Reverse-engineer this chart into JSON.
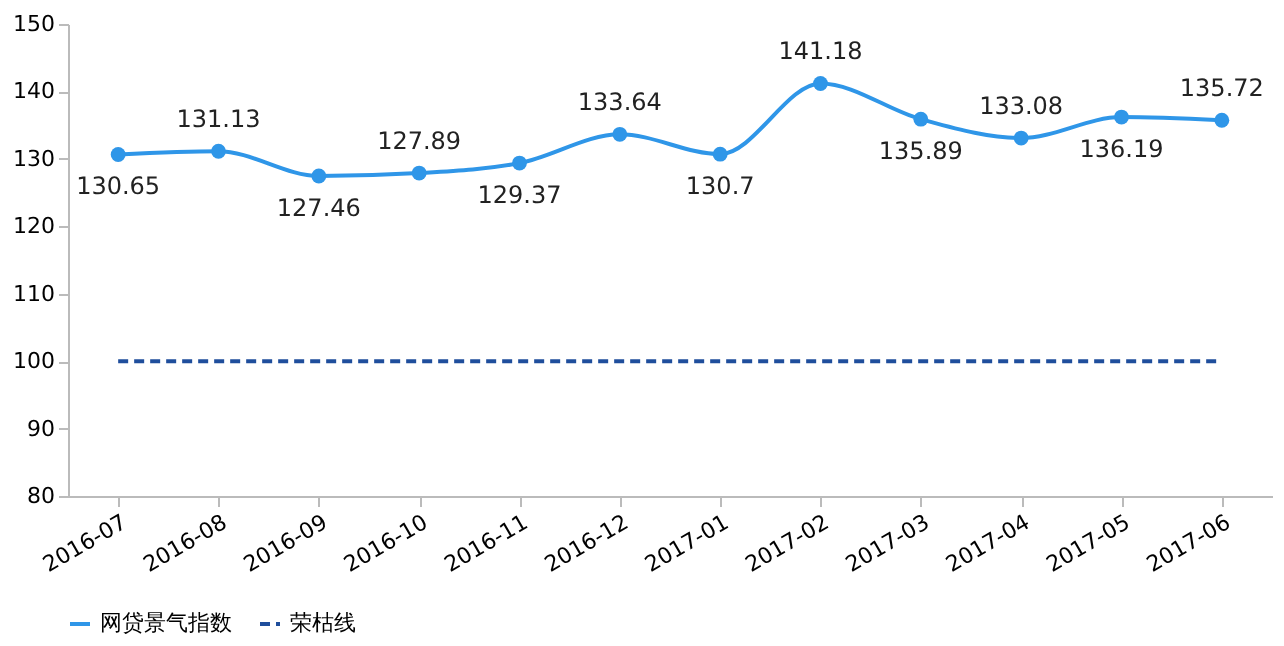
{
  "chart_data": {
    "type": "line",
    "categories": [
      "2016-07",
      "2016-08",
      "2016-09",
      "2016-10",
      "2016-11",
      "2016-12",
      "2017-01",
      "2017-02",
      "2017-03",
      "2017-04",
      "2017-05",
      "2017-06"
    ],
    "series": [
      {
        "name": "网贷景气指数",
        "color": "#2f96e8",
        "marker": "circle",
        "line_style": "solid",
        "values": [
          130.65,
          131.13,
          127.46,
          127.89,
          129.37,
          133.64,
          130.7,
          141.18,
          135.89,
          133.08,
          136.19,
          135.72
        ],
        "value_labels": [
          "130.65",
          "131.13",
          "127.46",
          "127.89",
          "129.37",
          "133.64",
          "130.7",
          "141.18",
          "135.89",
          "133.08",
          "136.19",
          "135.72"
        ]
      },
      {
        "name": "荣枯线",
        "color": "#1f4e9c",
        "marker": "none",
        "line_style": "dashed",
        "values": [
          100,
          100,
          100,
          100,
          100,
          100,
          100,
          100,
          100,
          100,
          100,
          100
        ]
      }
    ],
    "ylim": [
      80,
      150
    ],
    "yticks": [
      80,
      90,
      100,
      110,
      120,
      130,
      140,
      150
    ],
    "grid": false,
    "legend": "bottom"
  }
}
